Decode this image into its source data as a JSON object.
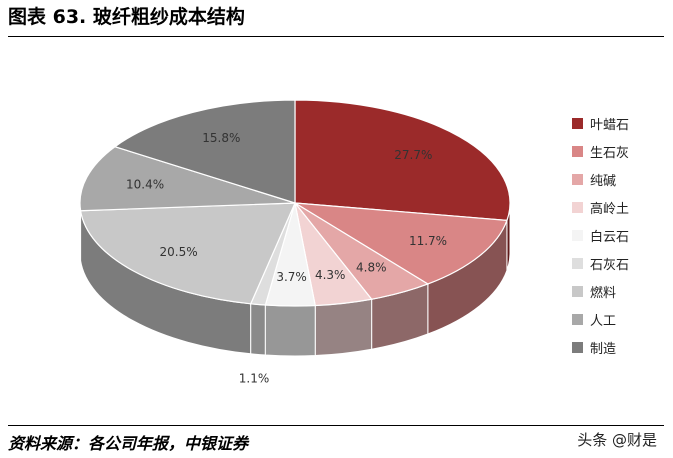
{
  "header": {
    "title": "图表 63. 玻纤粗纱成本结构"
  },
  "footer": {
    "source": "资料来源：各公司年报，中银证券",
    "watermark": "头条 @财是"
  },
  "chart_data": {
    "type": "pie",
    "title": "",
    "categories": [
      "叶蜡石",
      "生石灰",
      "纯碱",
      "高岭土",
      "白云石",
      "石灰石",
      "燃料",
      "人工",
      "制造"
    ],
    "values": [
      27.7,
      11.7,
      4.8,
      4.3,
      3.7,
      1.1,
      20.5,
      10.4,
      15.8
    ],
    "labels": [
      "27.7%",
      "11.7%",
      "4.8%",
      "4.3%",
      "3.7%",
      "1.1%",
      "20.5%",
      "10.4%",
      "15.8%"
    ],
    "colors": [
      "#9b2a2a",
      "#d98686",
      "#e4a7a7",
      "#f2d3d3",
      "#f4f4f4",
      "#dedede",
      "#c8c8c8",
      "#a8a8a8",
      "#7c7c7c"
    ],
    "legend_position": "right",
    "style": "3d"
  }
}
